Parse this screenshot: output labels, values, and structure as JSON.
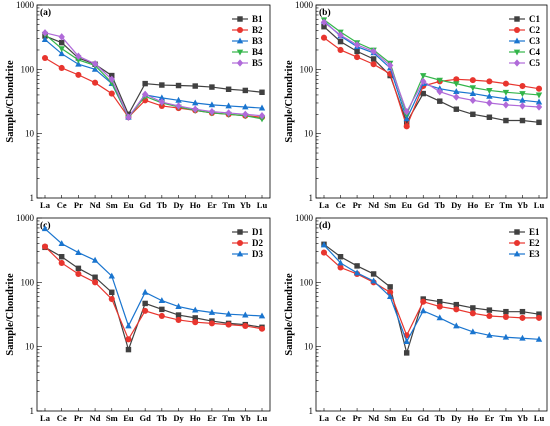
{
  "chart_data": [
    {
      "type": "line",
      "panel_label": "(a)",
      "ylabel": "Sample/Chondrite",
      "yscale": "log",
      "ylim": [
        1,
        1000
      ],
      "yticks": [
        "1",
        "10",
        "100",
        "1000"
      ],
      "categories": [
        "La",
        "Ce",
        "Pr",
        "Nd",
        "Sm",
        "Eu",
        "Gd",
        "Tb",
        "Dy",
        "Ho",
        "Er",
        "Tm",
        "Yb",
        "Lu"
      ],
      "legend_position": "top-right",
      "series": [
        {
          "name": "B1",
          "color": "#404040",
          "marker": "square",
          "values": [
            330,
            260,
            150,
            120,
            80,
            20,
            60,
            57,
            56,
            55,
            53,
            49,
            47,
            44
          ]
        },
        {
          "name": "B2",
          "color": "#e8352e",
          "marker": "circle",
          "values": [
            150,
            105,
            82,
            62,
            42,
            18,
            33,
            27,
            25,
            23,
            21,
            20,
            19,
            18
          ]
        },
        {
          "name": "B3",
          "color": "#1a75cf",
          "marker": "triangle",
          "values": [
            290,
            175,
            120,
            100,
            60,
            18,
            40,
            36,
            33,
            30,
            28,
            27,
            26,
            25
          ]
        },
        {
          "name": "B4",
          "color": "#33b54a",
          "marker": "tri-down",
          "values": [
            350,
            210,
            140,
            115,
            62,
            18,
            38,
            30,
            26,
            23,
            21,
            20,
            19,
            17
          ]
        },
        {
          "name": "B5",
          "color": "#b06ad9",
          "marker": "diamond",
          "values": [
            370,
            320,
            160,
            122,
            70,
            18,
            41,
            31,
            27,
            24,
            22,
            21,
            20,
            19
          ]
        }
      ]
    },
    {
      "type": "line",
      "panel_label": "(b)",
      "ylabel": "Sample/Chondrite",
      "yscale": "log",
      "ylim": [
        1,
        1000
      ],
      "yticks": [
        "1",
        "10",
        "100",
        "1000"
      ],
      "categories": [
        "La",
        "Ce",
        "Pr",
        "Nd",
        "Sm",
        "Eu",
        "Gd",
        "Tb",
        "Dy",
        "Ho",
        "Er",
        "Tm",
        "Yb",
        "Lu"
      ],
      "legend_position": "top-right",
      "series": [
        {
          "name": "C1",
          "color": "#404040",
          "marker": "square",
          "values": [
            460,
            270,
            190,
            145,
            80,
            15,
            42,
            32,
            24,
            20,
            18,
            16,
            16,
            15
          ]
        },
        {
          "name": "C2",
          "color": "#e8352e",
          "marker": "circle",
          "values": [
            310,
            200,
            155,
            120,
            85,
            13,
            55,
            65,
            70,
            68,
            65,
            60,
            55,
            50
          ]
        },
        {
          "name": "C3",
          "color": "#1a75cf",
          "marker": "triangle",
          "values": [
            560,
            330,
            225,
            180,
            105,
            17,
            60,
            50,
            45,
            42,
            38,
            35,
            33,
            31
          ]
        },
        {
          "name": "C4",
          "color": "#33b54a",
          "marker": "tri-down",
          "values": [
            590,
            380,
            260,
            200,
            125,
            20,
            80,
            68,
            60,
            52,
            47,
            44,
            42,
            40
          ]
        },
        {
          "name": "C5",
          "color": "#b06ad9",
          "marker": "diamond",
          "values": [
            540,
            340,
            240,
            190,
            115,
            22,
            65,
            45,
            37,
            33,
            30,
            28,
            27,
            26
          ]
        }
      ]
    },
    {
      "type": "line",
      "panel_label": "(c)",
      "ylabel": "Sample/Chondrite",
      "yscale": "log",
      "ylim": [
        1,
        1000
      ],
      "yticks": [
        "1",
        "10",
        "100",
        "1000"
      ],
      "categories": [
        "La",
        "Ce",
        "Pr",
        "Nd",
        "Sm",
        "Eu",
        "Gd",
        "Tb",
        "Dy",
        "Ho",
        "Er",
        "Tm",
        "Yb",
        "Lu"
      ],
      "legend_position": "top-right",
      "series": [
        {
          "name": "D1",
          "color": "#404040",
          "marker": "square",
          "values": [
            350,
            250,
            165,
            120,
            70,
            9,
            47,
            38,
            31,
            28,
            25,
            23,
            22,
            20
          ]
        },
        {
          "name": "D2",
          "color": "#e8352e",
          "marker": "circle",
          "values": [
            360,
            200,
            135,
            100,
            55,
            13,
            36,
            30,
            26,
            24,
            23,
            22,
            21,
            19
          ]
        },
        {
          "name": "D3",
          "color": "#1a75cf",
          "marker": "triangle",
          "values": [
            680,
            400,
            290,
            220,
            125,
            21,
            70,
            52,
            42,
            37,
            34,
            32,
            31,
            30
          ]
        }
      ]
    },
    {
      "type": "line",
      "panel_label": "(d)",
      "ylabel": "Sample/Chondrite",
      "yscale": "log",
      "ylim": [
        1,
        1000
      ],
      "yticks": [
        "1",
        "10",
        "100",
        "1000"
      ],
      "categories": [
        "La",
        "Ce",
        "Pr",
        "Nd",
        "Sm",
        "Eu",
        "Gd",
        "Tb",
        "Dy",
        "Ho",
        "Er",
        "Tm",
        "Yb",
        "Lu"
      ],
      "legend_position": "top-right",
      "series": [
        {
          "name": "E1",
          "color": "#404040",
          "marker": "square",
          "values": [
            390,
            250,
            180,
            135,
            85,
            8,
            55,
            50,
            45,
            40,
            37,
            35,
            35,
            32
          ]
        },
        {
          "name": "E2",
          "color": "#e8352e",
          "marker": "circle",
          "values": [
            290,
            170,
            135,
            100,
            70,
            15,
            50,
            42,
            38,
            33,
            30,
            29,
            28,
            28
          ]
        },
        {
          "name": "E3",
          "color": "#1a75cf",
          "marker": "triangle",
          "values": [
            380,
            200,
            140,
            105,
            60,
            12,
            36,
            28,
            21,
            17,
            15,
            14,
            13.5,
            13
          ]
        }
      ]
    }
  ]
}
